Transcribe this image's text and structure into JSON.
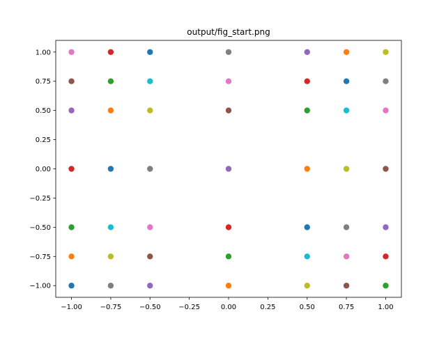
{
  "chart_data": {
    "type": "scatter",
    "title": "output/fig_start.png",
    "xlabel": "",
    "ylabel": "",
    "xlim": [
      -1.1,
      1.1
    ],
    "ylim": [
      -1.1,
      1.1
    ],
    "x_ticks": [
      -1.0,
      -0.75,
      -0.5,
      -0.25,
      0.0,
      0.25,
      0.5,
      0.75,
      1.0
    ],
    "x_tick_labels": [
      "−1.00",
      "−0.75",
      "−0.50",
      "−0.25",
      "0.00",
      "0.25",
      "0.50",
      "0.75",
      "1.00"
    ],
    "y_ticks": [
      1.0,
      0.75,
      0.5,
      0.25,
      0.0,
      -0.25,
      -0.5,
      -0.75,
      -1.0
    ],
    "y_tick_labels": [
      "1.00",
      "0.75",
      "0.50",
      "0.25",
      "0.00",
      "−0.25",
      "−0.50",
      "−0.75",
      "−1.00"
    ],
    "grid": false,
    "legend": "none",
    "series": [
      {
        "x": -1.0,
        "y": -1.0,
        "color": "#1f77b4"
      },
      {
        "x": -1.0,
        "y": -0.75,
        "color": "#ff7f0e"
      },
      {
        "x": -1.0,
        "y": -0.5,
        "color": "#2ca02c"
      },
      {
        "x": -1.0,
        "y": 0.0,
        "color": "#d62728"
      },
      {
        "x": -1.0,
        "y": 0.5,
        "color": "#9467bd"
      },
      {
        "x": -1.0,
        "y": 0.75,
        "color": "#8c564b"
      },
      {
        "x": -1.0,
        "y": 1.0,
        "color": "#e377c2"
      },
      {
        "x": -0.75,
        "y": -1.0,
        "color": "#7f7f7f"
      },
      {
        "x": -0.75,
        "y": -0.75,
        "color": "#bcbd22"
      },
      {
        "x": -0.75,
        "y": -0.5,
        "color": "#17becf"
      },
      {
        "x": -0.75,
        "y": 0.0,
        "color": "#1f77b4"
      },
      {
        "x": -0.75,
        "y": 0.5,
        "color": "#ff7f0e"
      },
      {
        "x": -0.75,
        "y": 0.75,
        "color": "#2ca02c"
      },
      {
        "x": -0.75,
        "y": 1.0,
        "color": "#d62728"
      },
      {
        "x": -0.5,
        "y": -1.0,
        "color": "#9467bd"
      },
      {
        "x": -0.5,
        "y": -0.75,
        "color": "#8c564b"
      },
      {
        "x": -0.5,
        "y": -0.5,
        "color": "#e377c2"
      },
      {
        "x": -0.5,
        "y": 0.0,
        "color": "#7f7f7f"
      },
      {
        "x": -0.5,
        "y": 0.5,
        "color": "#bcbd22"
      },
      {
        "x": -0.5,
        "y": 0.75,
        "color": "#17becf"
      },
      {
        "x": -0.5,
        "y": 1.0,
        "color": "#1f77b4"
      },
      {
        "x": 0.0,
        "y": -1.0,
        "color": "#ff7f0e"
      },
      {
        "x": 0.0,
        "y": -0.75,
        "color": "#2ca02c"
      },
      {
        "x": 0.0,
        "y": -0.5,
        "color": "#d62728"
      },
      {
        "x": 0.0,
        "y": 0.0,
        "color": "#9467bd"
      },
      {
        "x": 0.0,
        "y": 0.5,
        "color": "#8c564b"
      },
      {
        "x": 0.0,
        "y": 0.75,
        "color": "#e377c2"
      },
      {
        "x": 0.0,
        "y": 1.0,
        "color": "#7f7f7f"
      },
      {
        "x": 0.5,
        "y": -1.0,
        "color": "#bcbd22"
      },
      {
        "x": 0.5,
        "y": -0.75,
        "color": "#17becf"
      },
      {
        "x": 0.5,
        "y": -0.5,
        "color": "#1f77b4"
      },
      {
        "x": 0.5,
        "y": 0.0,
        "color": "#ff7f0e"
      },
      {
        "x": 0.5,
        "y": 0.5,
        "color": "#2ca02c"
      },
      {
        "x": 0.5,
        "y": 0.75,
        "color": "#d62728"
      },
      {
        "x": 0.5,
        "y": 1.0,
        "color": "#9467bd"
      },
      {
        "x": 0.75,
        "y": -1.0,
        "color": "#8c564b"
      },
      {
        "x": 0.75,
        "y": -0.75,
        "color": "#e377c2"
      },
      {
        "x": 0.75,
        "y": -0.5,
        "color": "#7f7f7f"
      },
      {
        "x": 0.75,
        "y": 0.0,
        "color": "#bcbd22"
      },
      {
        "x": 0.75,
        "y": 0.5,
        "color": "#17becf"
      },
      {
        "x": 0.75,
        "y": 0.75,
        "color": "#1f77b4"
      },
      {
        "x": 0.75,
        "y": 1.0,
        "color": "#ff7f0e"
      },
      {
        "x": 1.0,
        "y": -1.0,
        "color": "#2ca02c"
      },
      {
        "x": 1.0,
        "y": -0.75,
        "color": "#d62728"
      },
      {
        "x": 1.0,
        "y": -0.5,
        "color": "#9467bd"
      },
      {
        "x": 1.0,
        "y": 0.0,
        "color": "#8c564b"
      },
      {
        "x": 1.0,
        "y": 0.5,
        "color": "#e377c2"
      },
      {
        "x": 1.0,
        "y": 0.75,
        "color": "#7f7f7f"
      },
      {
        "x": 1.0,
        "y": 1.0,
        "color": "#bcbd22"
      }
    ]
  }
}
